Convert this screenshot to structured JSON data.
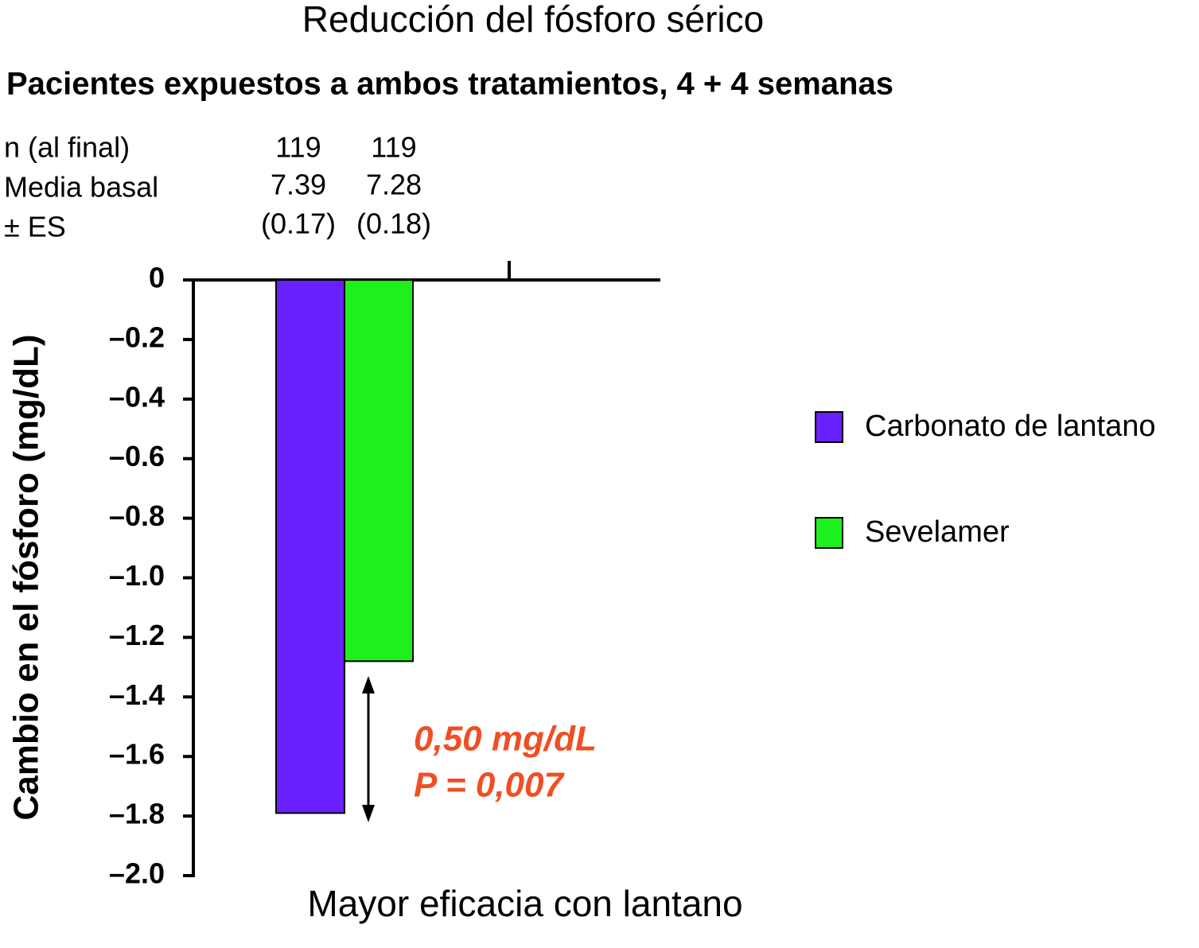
{
  "chart_data": {
    "type": "bar",
    "title": "Reducción del fósforo sérico",
    "subtitle": "Pacientes expuestos a ambos tratamientos, 4 + 4 semanas",
    "stats_labels": [
      "n (al final)",
      "Media basal",
      "± ES"
    ],
    "y_label": "Cambio en el fósforo (mg/dL)",
    "x_label": "Mayor eficacia con lantano",
    "annotations": [
      "0,50 mg/dL",
      "P = 0,007"
    ],
    "series": [
      {
        "name": "Carbonato de lantano",
        "color": "#6a1ffe",
        "values": [
          -1.79
        ],
        "n": 119,
        "baseline": 7.39,
        "se": "(0.17)"
      },
      {
        "name": "Sevelamer",
        "color": "#1ef01e",
        "values": [
          -1.28
        ],
        "n": 119,
        "baseline": 7.28,
        "se": "(0.18)"
      }
    ],
    "ylim": [
      -2.0,
      0
    ],
    "yticks": [
      0,
      {
        "value": -0.2,
        "label": "–0.2"
      },
      {
        "value": -0.4,
        "label": "–0.4"
      },
      {
        "value": -0.6,
        "label": "–0.6"
      },
      {
        "value": -0.8,
        "label": "–0.8"
      },
      {
        "value": -1.0,
        "label": "–1.0"
      },
      {
        "value": -1.2,
        "label": "–1.2"
      },
      {
        "value": -1.4,
        "label": "–1.4"
      },
      {
        "value": -1.6,
        "label": "–1.6"
      },
      {
        "value": -1.8,
        "label": "–1.8"
      },
      {
        "value": -2.0,
        "label": "–2.0"
      }
    ],
    "grid": false
  }
}
